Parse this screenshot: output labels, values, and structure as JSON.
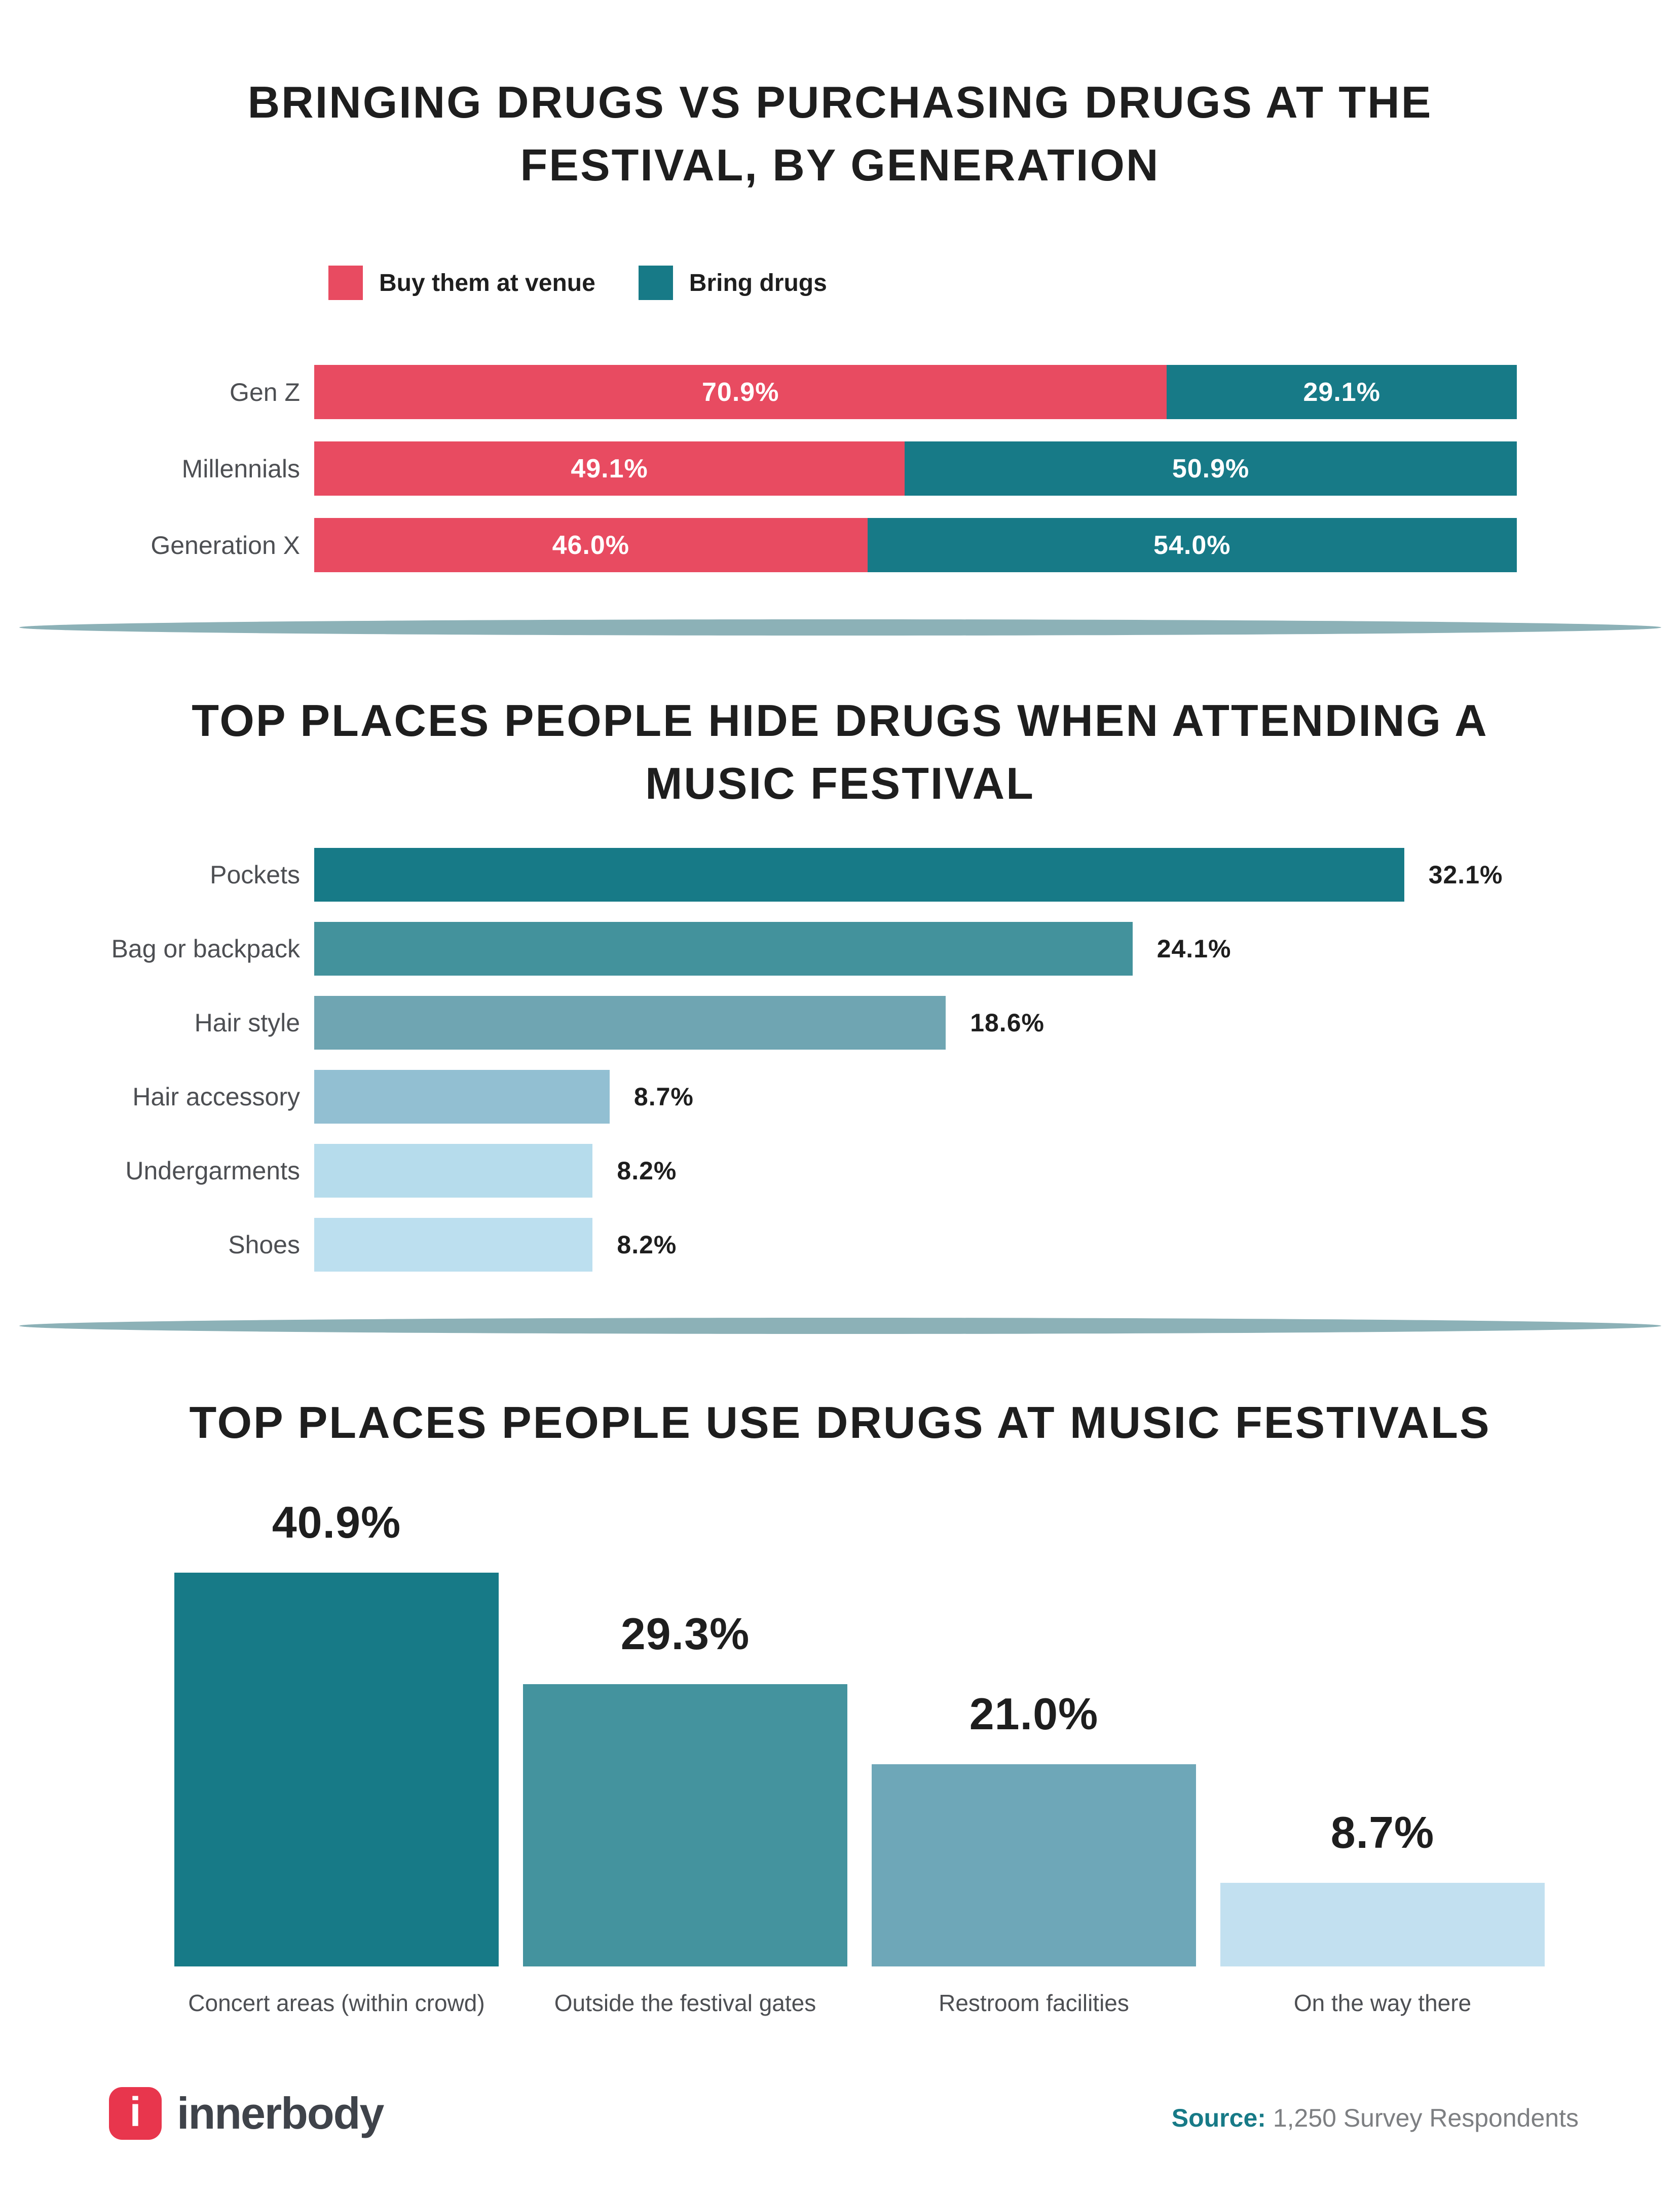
{
  "chart_data": [
    {
      "type": "bar",
      "subtype": "horizontal-stacked",
      "title": "BRINGING DRUGS VS PURCHASING DRUGS AT THE FESTIVAL, BY GENERATION",
      "title_lines": [
        "BRINGING DRUGS VS PURCHASING DRUGS AT THE",
        "FESTIVAL, BY GENERATION"
      ],
      "categories": [
        "Gen Z",
        "Millennials",
        "Generation X"
      ],
      "series": [
        {
          "name": "Buy them at venue",
          "color": "#e84b61",
          "values": [
            70.9,
            49.1,
            46.0
          ]
        },
        {
          "name": "Bring drugs",
          "color": "#177a87",
          "values": [
            29.1,
            50.9,
            54.0
          ]
        }
      ],
      "xlim": [
        0,
        100
      ],
      "legend_position": "top-left",
      "grid": false,
      "rows": [
        {
          "category": "Gen Z",
          "buy": 70.9,
          "bring": 29.1,
          "buy_label": "70.9%",
          "bring_label": "29.1%"
        },
        {
          "category": "Millennials",
          "buy": 49.1,
          "bring": 50.9,
          "buy_label": "49.1%",
          "bring_label": "50.9%"
        },
        {
          "category": "Generation X",
          "buy": 46.0,
          "bring": 54.0,
          "buy_label": "46.0%",
          "bring_label": "54.0%"
        }
      ]
    },
    {
      "type": "bar",
      "subtype": "horizontal",
      "title": "TOP PLACES PEOPLE HIDE DRUGS WHEN ATTENDING A MUSIC FESTIVAL",
      "title_lines": [
        "TOP PLACES PEOPLE HIDE DRUGS WHEN ATTENDING A",
        "MUSIC FESTIVAL"
      ],
      "categories": [
        "Pockets",
        "Bag or backpack",
        "Hair style",
        "Hair accessory",
        "Undergarments",
        "Shoes"
      ],
      "values": [
        32.1,
        24.1,
        18.6,
        8.7,
        8.2,
        8.2
      ],
      "xlim": [
        0,
        35
      ],
      "grid": false,
      "rows": [
        {
          "category": "Pockets",
          "value": 32.1,
          "label": "32.1%",
          "color": "#177a87"
        },
        {
          "category": "Bag or backpack",
          "value": 24.1,
          "label": "24.1%",
          "color": "#43929c"
        },
        {
          "category": "Hair style",
          "value": 18.6,
          "label": "18.6%",
          "color": "#6fa5b2"
        },
        {
          "category": "Hair accessory",
          "value": 8.7,
          "label": "8.7%",
          "color": "#92bfd2"
        },
        {
          "category": "Undergarments",
          "value": 8.2,
          "label": "8.2%",
          "color": "#b6dcec"
        },
        {
          "category": "Shoes",
          "value": 8.2,
          "label": "8.2%",
          "color": "#bcdfef"
        }
      ]
    },
    {
      "type": "bar",
      "subtype": "vertical",
      "title": "TOP PLACES PEOPLE USE DRUGS AT MUSIC FESTIVALS",
      "categories": [
        "Concert areas (within crowd)",
        "Outside the festival gates",
        "Restroom facilities",
        "On the way there"
      ],
      "values": [
        40.9,
        29.3,
        21.0,
        8.7
      ],
      "ylim": [
        0,
        45
      ],
      "grid": false,
      "columns": [
        {
          "category": "Concert areas (within crowd)",
          "value": 40.9,
          "label": "40.9%",
          "color": "#177a87"
        },
        {
          "category": "Outside the festival gates",
          "value": 29.3,
          "label": "29.3%",
          "color": "#44939e"
        },
        {
          "category": "Restroom facilities",
          "value": 21.0,
          "label": "21.0%",
          "color": "#6ea7b8"
        },
        {
          "category": "On the way there",
          "value": 8.7,
          "label": "8.7%",
          "color": "#c2e0f0"
        }
      ]
    }
  ],
  "decor": {
    "divider_color": "#8cb1b7"
  },
  "footer": {
    "brand": "innerbody",
    "brand_mark": "i",
    "brand_color": "#e8364d",
    "brand_text_color": "#3f434a",
    "source_label": "Source:",
    "source_label_color": "#177a87",
    "source_value": " 1,250 Survey Respondents",
    "source_value_color": "#7d7f82"
  }
}
